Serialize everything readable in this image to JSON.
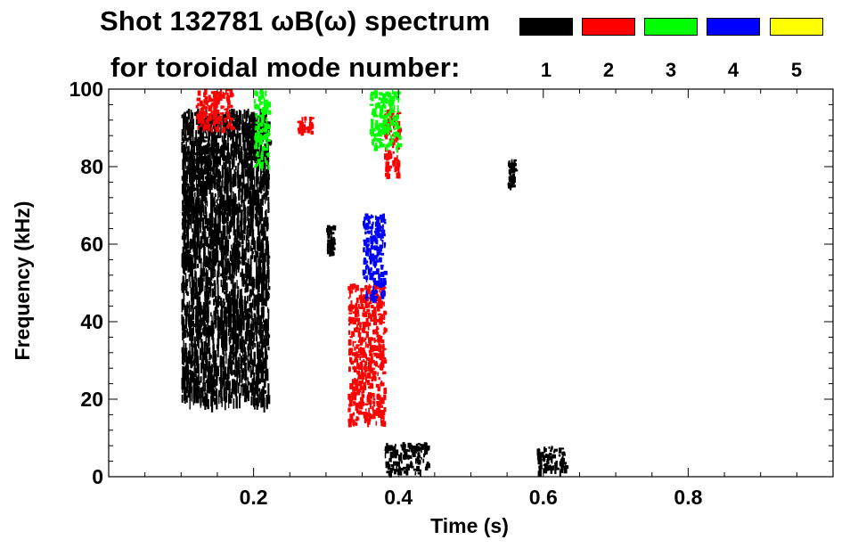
{
  "chart_data": {
    "type": "spectrogram",
    "title_line1": "Shot 132781 ωB(ω) spectrum",
    "title_line2": "for toroidal mode number:",
    "xlabel": "Time (s)",
    "ylabel": "Frequency (kHz)",
    "xlim": [
      0.0,
      1.0
    ],
    "ylim": [
      0,
      100
    ],
    "x_ticks": [
      0.2,
      0.4,
      0.6,
      0.8
    ],
    "x_tick_labels": [
      "0.2",
      "0.4",
      "0.6",
      "0.8"
    ],
    "y_ticks": [
      0,
      20,
      40,
      60,
      80,
      100
    ],
    "y_tick_labels": [
      "0",
      "20",
      "40",
      "60",
      "80",
      "100"
    ],
    "legend": [
      {
        "label": "1",
        "color": "#000000"
      },
      {
        "label": "2",
        "color": "#ff0000"
      },
      {
        "label": "3",
        "color": "#00ff00"
      },
      {
        "label": "4",
        "color": "#0000ff"
      },
      {
        "label": "5",
        "color": "#ffff00"
      }
    ],
    "features": [
      {
        "mode": 1,
        "t": [
          0.1,
          0.22
        ],
        "f": [
          20,
          95
        ],
        "desc": "broadband activity"
      },
      {
        "mode": 1,
        "t": [
          0.12,
          0.15
        ],
        "f": [
          75,
          88
        ]
      },
      {
        "mode": 1,
        "t": [
          0.19,
          0.22
        ],
        "f": [
          82,
          92
        ]
      },
      {
        "mode": 2,
        "t": [
          0.12,
          0.17
        ],
        "f": [
          90,
          100
        ]
      },
      {
        "mode": 2,
        "t": [
          0.26,
          0.28
        ],
        "f": [
          89,
          93
        ]
      },
      {
        "mode": 2,
        "t": [
          0.33,
          0.38
        ],
        "f": [
          14,
          50
        ]
      },
      {
        "mode": 2,
        "t": [
          0.38,
          0.4
        ],
        "f": [
          78,
          95
        ]
      },
      {
        "mode": 3,
        "t": [
          0.2,
          0.22
        ],
        "f": [
          80,
          100
        ]
      },
      {
        "mode": 3,
        "t": [
          0.36,
          0.4
        ],
        "f": [
          85,
          100
        ]
      },
      {
        "mode": 4,
        "t": [
          0.35,
          0.38
        ],
        "f": [
          46,
          68
        ]
      },
      {
        "mode": 1,
        "t": [
          0.38,
          0.44
        ],
        "f": [
          1,
          9
        ]
      },
      {
        "mode": 1,
        "t": [
          0.3,
          0.31
        ],
        "f": [
          58,
          65
        ]
      },
      {
        "mode": 1,
        "t": [
          0.55,
          0.56
        ],
        "f": [
          75,
          82
        ]
      },
      {
        "mode": 1,
        "t": [
          0.59,
          0.63
        ],
        "f": [
          1,
          8
        ]
      }
    ]
  }
}
